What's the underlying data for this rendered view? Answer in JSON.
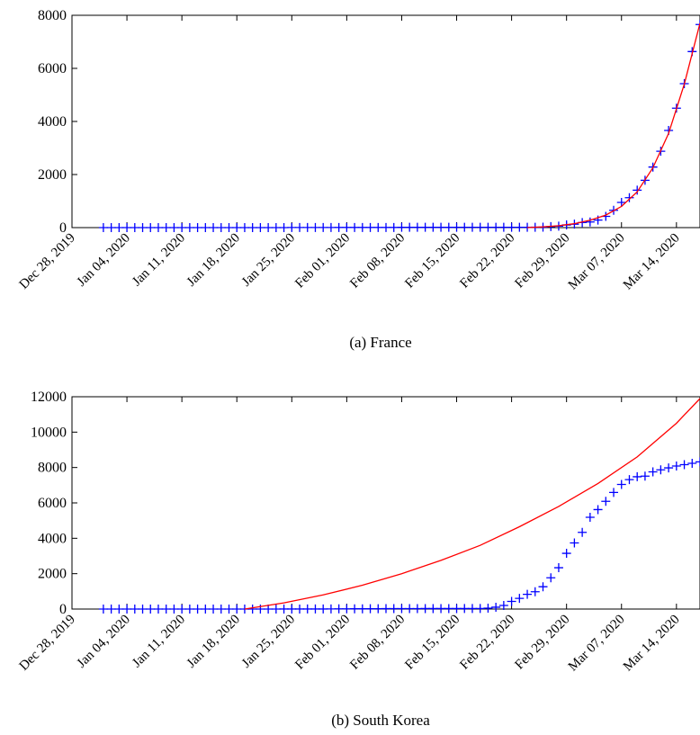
{
  "charts": [
    {
      "caption": "(a)  France",
      "x_tick_labels": [
        "Dec 28, 2019",
        "Jan 04, 2020",
        "Jan 11, 2020",
        "Jan 18, 2020",
        "Jan 25, 2020",
        "Feb 01, 2020",
        "Feb 08, 2020",
        "Feb 15, 2020",
        "Feb 22, 2020",
        "Feb 29, 2020",
        "Mar 07, 2020",
        "Mar 14, 2020"
      ],
      "y_tick_labels": [
        "0",
        "2000",
        "4000",
        "6000",
        "8000"
      ]
    },
    {
      "caption": "(b)  South Korea",
      "x_tick_labels": [
        "Dec 28, 2019",
        "Jan 04, 2020",
        "Jan 11, 2020",
        "Jan 18, 2020",
        "Jan 25, 2020",
        "Feb 01, 2020",
        "Feb 08, 2020",
        "Feb 15, 2020",
        "Feb 22, 2020",
        "Feb 29, 2020",
        "Mar 07, 2020",
        "Mar 14, 2020"
      ],
      "y_tick_labels": [
        "0",
        "2000",
        "4000",
        "6000",
        "8000",
        "10000",
        "12000"
      ]
    }
  ],
  "chart_data": [
    {
      "type": "line",
      "caption": "(a)  France",
      "xlabel": "",
      "ylabel": "",
      "xlim": [
        "2019-12-28",
        "2020-03-17"
      ],
      "ylim": [
        0,
        8000
      ],
      "yticks": [
        0,
        2000,
        4000,
        6000,
        8000
      ],
      "xticks": [
        "2019-12-28",
        "2020-01-04",
        "2020-01-11",
        "2020-01-18",
        "2020-01-25",
        "2020-02-01",
        "2020-02-08",
        "2020-02-15",
        "2020-02-22",
        "2020-02-29",
        "2020-03-07",
        "2020-03-14"
      ],
      "grid": false,
      "legend": "none",
      "series": [
        {
          "style": "markers",
          "marker": "+",
          "color": "#0000ff",
          "x": [
            "2020-01-01",
            "2020-01-02",
            "2020-01-03",
            "2020-01-04",
            "2020-01-05",
            "2020-01-06",
            "2020-01-07",
            "2020-01-08",
            "2020-01-09",
            "2020-01-10",
            "2020-01-11",
            "2020-01-12",
            "2020-01-13",
            "2020-01-14",
            "2020-01-15",
            "2020-01-16",
            "2020-01-17",
            "2020-01-18",
            "2020-01-19",
            "2020-01-20",
            "2020-01-21",
            "2020-01-22",
            "2020-01-23",
            "2020-01-24",
            "2020-01-25",
            "2020-01-26",
            "2020-01-27",
            "2020-01-28",
            "2020-01-29",
            "2020-01-30",
            "2020-01-31",
            "2020-02-01",
            "2020-02-02",
            "2020-02-03",
            "2020-02-04",
            "2020-02-05",
            "2020-02-06",
            "2020-02-07",
            "2020-02-08",
            "2020-02-09",
            "2020-02-10",
            "2020-02-11",
            "2020-02-12",
            "2020-02-13",
            "2020-02-14",
            "2020-02-15",
            "2020-02-16",
            "2020-02-17",
            "2020-02-18",
            "2020-02-19",
            "2020-02-20",
            "2020-02-21",
            "2020-02-22",
            "2020-02-23",
            "2020-02-24",
            "2020-02-25",
            "2020-02-26",
            "2020-02-27",
            "2020-02-28",
            "2020-02-29",
            "2020-03-01",
            "2020-03-02",
            "2020-03-03",
            "2020-03-04",
            "2020-03-05",
            "2020-03-06",
            "2020-03-07",
            "2020-03-08",
            "2020-03-09",
            "2020-03-10",
            "2020-03-11",
            "2020-03-12",
            "2020-03-13",
            "2020-03-14",
            "2020-03-15",
            "2020-03-16",
            "2020-03-17"
          ],
          "y": [
            0,
            0,
            0,
            0,
            0,
            0,
            0,
            0,
            0,
            0,
            0,
            0,
            0,
            0,
            0,
            0,
            0,
            0,
            0,
            0,
            0,
            0,
            0,
            0,
            3,
            3,
            3,
            4,
            5,
            5,
            6,
            6,
            6,
            6,
            6,
            6,
            6,
            6,
            11,
            11,
            11,
            11,
            11,
            11,
            11,
            12,
            12,
            12,
            12,
            12,
            12,
            12,
            12,
            12,
            12,
            14,
            18,
            38,
            57,
            100,
            130,
            191,
            212,
            285,
            423,
            653,
            949,
            1126,
            1412,
            1784,
            2281,
            2876,
            3661,
            4499,
            5423,
            6633,
            7652
          ]
        },
        {
          "style": "line",
          "color": "#ff0000",
          "x": [
            "2020-02-24",
            "2020-02-26",
            "2020-02-28",
            "2020-03-01",
            "2020-03-03",
            "2020-03-05",
            "2020-03-07",
            "2020-03-09",
            "2020-03-11",
            "2020-03-13",
            "2020-03-15",
            "2020-03-17"
          ],
          "y": [
            0,
            30,
            70,
            150,
            280,
            470,
            800,
            1350,
            2250,
            3550,
            5400,
            7700
          ]
        }
      ]
    },
    {
      "type": "line",
      "caption": "(b)  South Korea",
      "xlabel": "",
      "ylabel": "",
      "xlim": [
        "2019-12-28",
        "2020-03-17"
      ],
      "ylim": [
        0,
        12000
      ],
      "yticks": [
        0,
        2000,
        4000,
        6000,
        8000,
        10000,
        12000
      ],
      "xticks": [
        "2019-12-28",
        "2020-01-04",
        "2020-01-11",
        "2020-01-18",
        "2020-01-25",
        "2020-02-01",
        "2020-02-08",
        "2020-02-15",
        "2020-02-22",
        "2020-02-29",
        "2020-03-07",
        "2020-03-14"
      ],
      "grid": false,
      "legend": "none",
      "series": [
        {
          "style": "markers",
          "marker": "+",
          "color": "#0000ff",
          "x": [
            "2020-01-01",
            "2020-01-02",
            "2020-01-03",
            "2020-01-04",
            "2020-01-05",
            "2020-01-06",
            "2020-01-07",
            "2020-01-08",
            "2020-01-09",
            "2020-01-10",
            "2020-01-11",
            "2020-01-12",
            "2020-01-13",
            "2020-01-14",
            "2020-01-15",
            "2020-01-16",
            "2020-01-17",
            "2020-01-18",
            "2020-01-19",
            "2020-01-20",
            "2020-01-21",
            "2020-01-22",
            "2020-01-23",
            "2020-01-24",
            "2020-01-25",
            "2020-01-26",
            "2020-01-27",
            "2020-01-28",
            "2020-01-29",
            "2020-01-30",
            "2020-01-31",
            "2020-02-01",
            "2020-02-02",
            "2020-02-03",
            "2020-02-04",
            "2020-02-05",
            "2020-02-06",
            "2020-02-07",
            "2020-02-08",
            "2020-02-09",
            "2020-02-10",
            "2020-02-11",
            "2020-02-12",
            "2020-02-13",
            "2020-02-14",
            "2020-02-15",
            "2020-02-16",
            "2020-02-17",
            "2020-02-18",
            "2020-02-19",
            "2020-02-20",
            "2020-02-21",
            "2020-02-22",
            "2020-02-23",
            "2020-02-24",
            "2020-02-25",
            "2020-02-26",
            "2020-02-27",
            "2020-02-28",
            "2020-02-29",
            "2020-03-01",
            "2020-03-02",
            "2020-03-03",
            "2020-03-04",
            "2020-03-05",
            "2020-03-06",
            "2020-03-07",
            "2020-03-08",
            "2020-03-09",
            "2020-03-10",
            "2020-03-11",
            "2020-03-12",
            "2020-03-13",
            "2020-03-14",
            "2020-03-15",
            "2020-03-16",
            "2020-03-17"
          ],
          "y": [
            0,
            0,
            0,
            0,
            0,
            0,
            0,
            0,
            0,
            0,
            0,
            0,
            0,
            0,
            0,
            0,
            0,
            0,
            0,
            1,
            1,
            1,
            1,
            2,
            2,
            3,
            4,
            4,
            4,
            6,
            11,
            12,
            15,
            15,
            16,
            19,
            23,
            24,
            24,
            25,
            27,
            28,
            28,
            28,
            28,
            28,
            29,
            30,
            31,
            51,
            104,
            204,
            433,
            602,
            833,
            977,
            1261,
            1766,
            2337,
            3150,
            3736,
            4335,
            5186,
            5621,
            6088,
            6593,
            7041,
            7314,
            7478,
            7513,
            7755,
            7869,
            7979,
            8086,
            8162,
            8236,
            8320
          ]
        },
        {
          "style": "line",
          "color": "#ff0000",
          "x": [
            "2020-01-19",
            "2020-01-24",
            "2020-01-29",
            "2020-02-03",
            "2020-02-08",
            "2020-02-13",
            "2020-02-18",
            "2020-02-23",
            "2020-02-28",
            "2020-03-04",
            "2020-03-09",
            "2020-03-14",
            "2020-03-17"
          ],
          "y": [
            0,
            350,
            800,
            1350,
            2000,
            2750,
            3600,
            4650,
            5800,
            7100,
            8600,
            10500,
            11900
          ]
        }
      ]
    }
  ]
}
